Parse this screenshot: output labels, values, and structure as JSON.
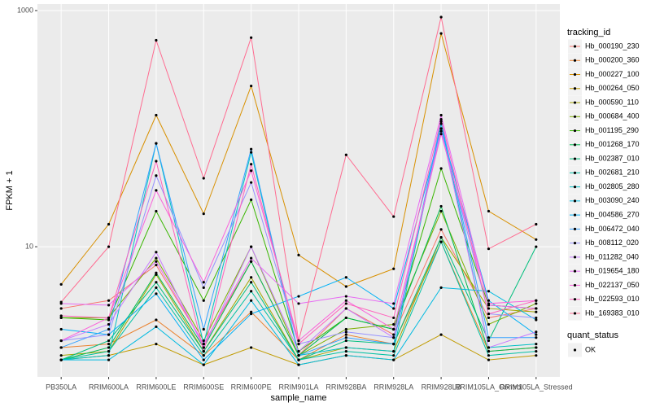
{
  "chart_data": {
    "type": "line",
    "x_label": "sample_name",
    "y_label": "FPKM + 1",
    "log_y": true,
    "grid": true,
    "categories": [
      "PB350LA",
      "RRIM600LA",
      "RRIM600LE",
      "RRIM600SE",
      "RRIM600PE",
      "RRIM901LA",
      "RRIM928BA",
      "RRIM928LA",
      "RRIM928LB",
      "RRIM105LA_Control",
      "RRIM105LA_Stressed"
    ],
    "ylim": [
      0.79,
      1135
    ],
    "yticks": [
      10,
      1000
    ],
    "legend_title": "tracking_id",
    "point_legend": {
      "title": "quant_status",
      "labels": [
        "OK"
      ],
      "color": "#000000"
    },
    "series": [
      {
        "name": "Hb_000190_230",
        "color": "#F8766D",
        "values": [
          3.0,
          3.5,
          7,
          1.5,
          7.5,
          1.2,
          3,
          1.8,
          14,
          2.5,
          3
        ]
      },
      {
        "name": "Hb_000200_360",
        "color": "#EA8331",
        "values": [
          1.4,
          1.5,
          2.4,
          1.2,
          2.8,
          1.1,
          1.8,
          1.5,
          11,
          1.3,
          1.4
        ]
      },
      {
        "name": "Hb_000227_100",
        "color": "#D89000",
        "values": [
          4.8,
          15.5,
          130,
          19,
          230,
          8.5,
          4.6,
          6.5,
          640,
          20,
          11.5
        ]
      },
      {
        "name": "Hb_000264_050",
        "color": "#C09B00",
        "values": [
          1.1,
          1.2,
          1.5,
          1.0,
          1.4,
          1.0,
          1.2,
          1.1,
          1.8,
          1.1,
          1.2
        ]
      },
      {
        "name": "Hb_000590_110",
        "color": "#A3A500",
        "values": [
          1.2,
          1.3,
          5.8,
          1.3,
          5.5,
          1.1,
          1.4,
          1.3,
          12,
          3.0,
          2.8
        ]
      },
      {
        "name": "Hb_000684_400",
        "color": "#7CAE00",
        "values": [
          2.5,
          2.5,
          8,
          1.6,
          10,
          1.2,
          2,
          2.2,
          20,
          2.2,
          3.3
        ]
      },
      {
        "name": "Hb_001195_290",
        "color": "#39B600",
        "values": [
          2.5,
          2.4,
          20,
          3.5,
          25,
          1.3,
          2.5,
          2.0,
          46,
          3.2,
          3.0
        ]
      },
      {
        "name": "Hb_001268_170",
        "color": "#00BB4E",
        "values": [
          1.1,
          1.4,
          6,
          1.4,
          7.5,
          1.2,
          2.5,
          2.0,
          22,
          1.3,
          1.4
        ]
      },
      {
        "name": "Hb_002387_010",
        "color": "#00BF7D",
        "values": [
          1.1,
          1.6,
          5,
          1.3,
          5,
          1.1,
          1.6,
          1.5,
          12,
          1.6,
          10
        ]
      },
      {
        "name": "Hb_002681_210",
        "color": "#00C1A3",
        "values": [
          1.1,
          1.3,
          4.5,
          1.2,
          4.2,
          1.1,
          1.3,
          1.2,
          11,
          1.2,
          1.3
        ]
      },
      {
        "name": "Hb_002805_280",
        "color": "#00BFC4",
        "values": [
          1.1,
          1.2,
          75,
          1.5,
          63,
          1.2,
          1.4,
          1.3,
          110,
          1.4,
          1.5
        ]
      },
      {
        "name": "Hb_003090_240",
        "color": "#00BAE0",
        "values": [
          1.1,
          1.1,
          2.1,
          1.0,
          3.5,
          1.0,
          1.2,
          1.1,
          4.5,
          4.2,
          2.4
        ]
      },
      {
        "name": "Hb_004586_270",
        "color": "#00B0F6",
        "values": [
          2.0,
          1.8,
          4,
          1.1,
          2.7,
          3.8,
          5.5,
          3.0,
          100,
          3.5,
          1.8
        ]
      },
      {
        "name": "Hb_006472_040",
        "color": "#35A2FF",
        "values": [
          1.4,
          2.0,
          75,
          2.0,
          67,
          1.2,
          1.7,
          1.5,
          115,
          1.7,
          1.7
        ]
      },
      {
        "name": "Hb_008112_020",
        "color": "#9590FF",
        "values": [
          1.6,
          1.8,
          40,
          4.5,
          35,
          1.5,
          1.9,
          1.7,
          95,
          2.7,
          2.5
        ]
      },
      {
        "name": "Hb_011282_040",
        "color": "#C77CFF",
        "values": [
          1.6,
          2.2,
          9,
          1.4,
          10,
          1.3,
          3,
          1.7,
          100,
          1.4,
          1.9
        ]
      },
      {
        "name": "Hb_019654_180",
        "color": "#E76BF3",
        "values": [
          3.3,
          3.2,
          7.5,
          1.5,
          8,
          3.3,
          3.8,
          3.3,
          130,
          3.2,
          3.0
        ]
      },
      {
        "name": "Hb_022137_050",
        "color": "#FA62DB",
        "values": [
          1.6,
          2.5,
          30,
          5.0,
          44,
          1.6,
          3.5,
          2.0,
          90,
          3.3,
          3.5
        ]
      },
      {
        "name": "Hb_022593_010",
        "color": "#FF62BC",
        "values": [
          2.6,
          2.5,
          53,
          1.3,
          50,
          1.5,
          3.3,
          2.5,
          120,
          2.7,
          3.5
        ]
      },
      {
        "name": "Hb_169383_010",
        "color": "#FF6C91",
        "values": [
          3.4,
          10,
          560,
          38,
          590,
          1.6,
          60,
          18,
          880,
          9.6,
          15.5
        ]
      }
    ]
  }
}
